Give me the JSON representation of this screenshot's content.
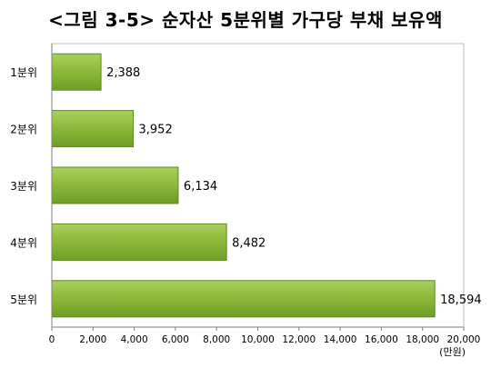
{
  "chart_data": {
    "type": "bar",
    "orientation": "horizontal",
    "title": "<그림 3-5> 순자산 5분위별 가구당 부채 보유액",
    "categories": [
      "1분위",
      "2분위",
      "3분위",
      "4분위",
      "5분위"
    ],
    "values": [
      2388,
      3952,
      6134,
      8482,
      18594
    ],
    "value_labels": [
      "2,388",
      "3,952",
      "6,134",
      "8,482",
      "18,594"
    ],
    "xlim": [
      0,
      20000
    ],
    "x_ticks": [
      0,
      2000,
      4000,
      6000,
      8000,
      10000,
      12000,
      14000,
      16000,
      18000,
      20000
    ],
    "x_tick_labels": [
      "0",
      "2,000",
      "4,000",
      "6,000",
      "8,000",
      "10,000",
      "12,000",
      "14,000",
      "16,000",
      "18,000",
      "20,000"
    ],
    "unit_label": "(만원)",
    "grid": false,
    "colors": {
      "bar_fill": "#8dbb3c",
      "bar_edge": "#5c8a1e",
      "axis": "#7f7f7f"
    }
  }
}
